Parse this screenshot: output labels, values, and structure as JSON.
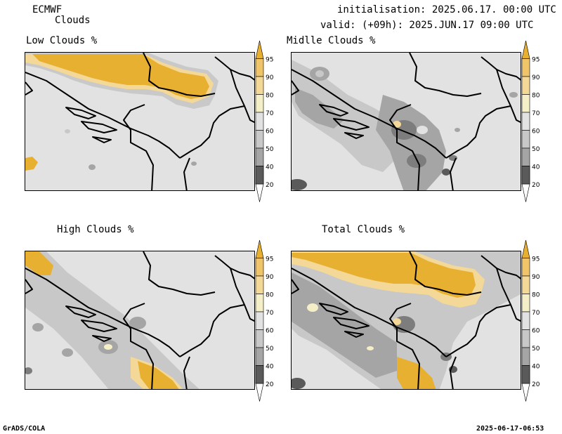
{
  "header": {
    "model": "ECMWF",
    "field": "Clouds",
    "init": "initialisation: 2025.06.17. 00:00 UTC",
    "valid": "valid: (+09h): 2025.JUN.17 09:00 UTC"
  },
  "panels": {
    "low": {
      "title": "Low Clouds %"
    },
    "middle": {
      "title": "Midlle Clouds %"
    },
    "high": {
      "title": "High Clouds %"
    },
    "total": {
      "title": "Total Clouds %"
    }
  },
  "colorbar": {
    "ticks": [
      "95",
      "90",
      "80",
      "70",
      "60",
      "50",
      "40",
      "20"
    ],
    "colors": [
      "#e8b030",
      "#f0c468",
      "#f4d898",
      "#f5efc8",
      "#e2e2e2",
      "#c8c8c8",
      "#a5a5a5",
      "#7d7d7d",
      "#5a5a5a"
    ]
  },
  "footer": {
    "left": "GrADS/COLA",
    "right": "2025-06-17-06:53"
  }
}
